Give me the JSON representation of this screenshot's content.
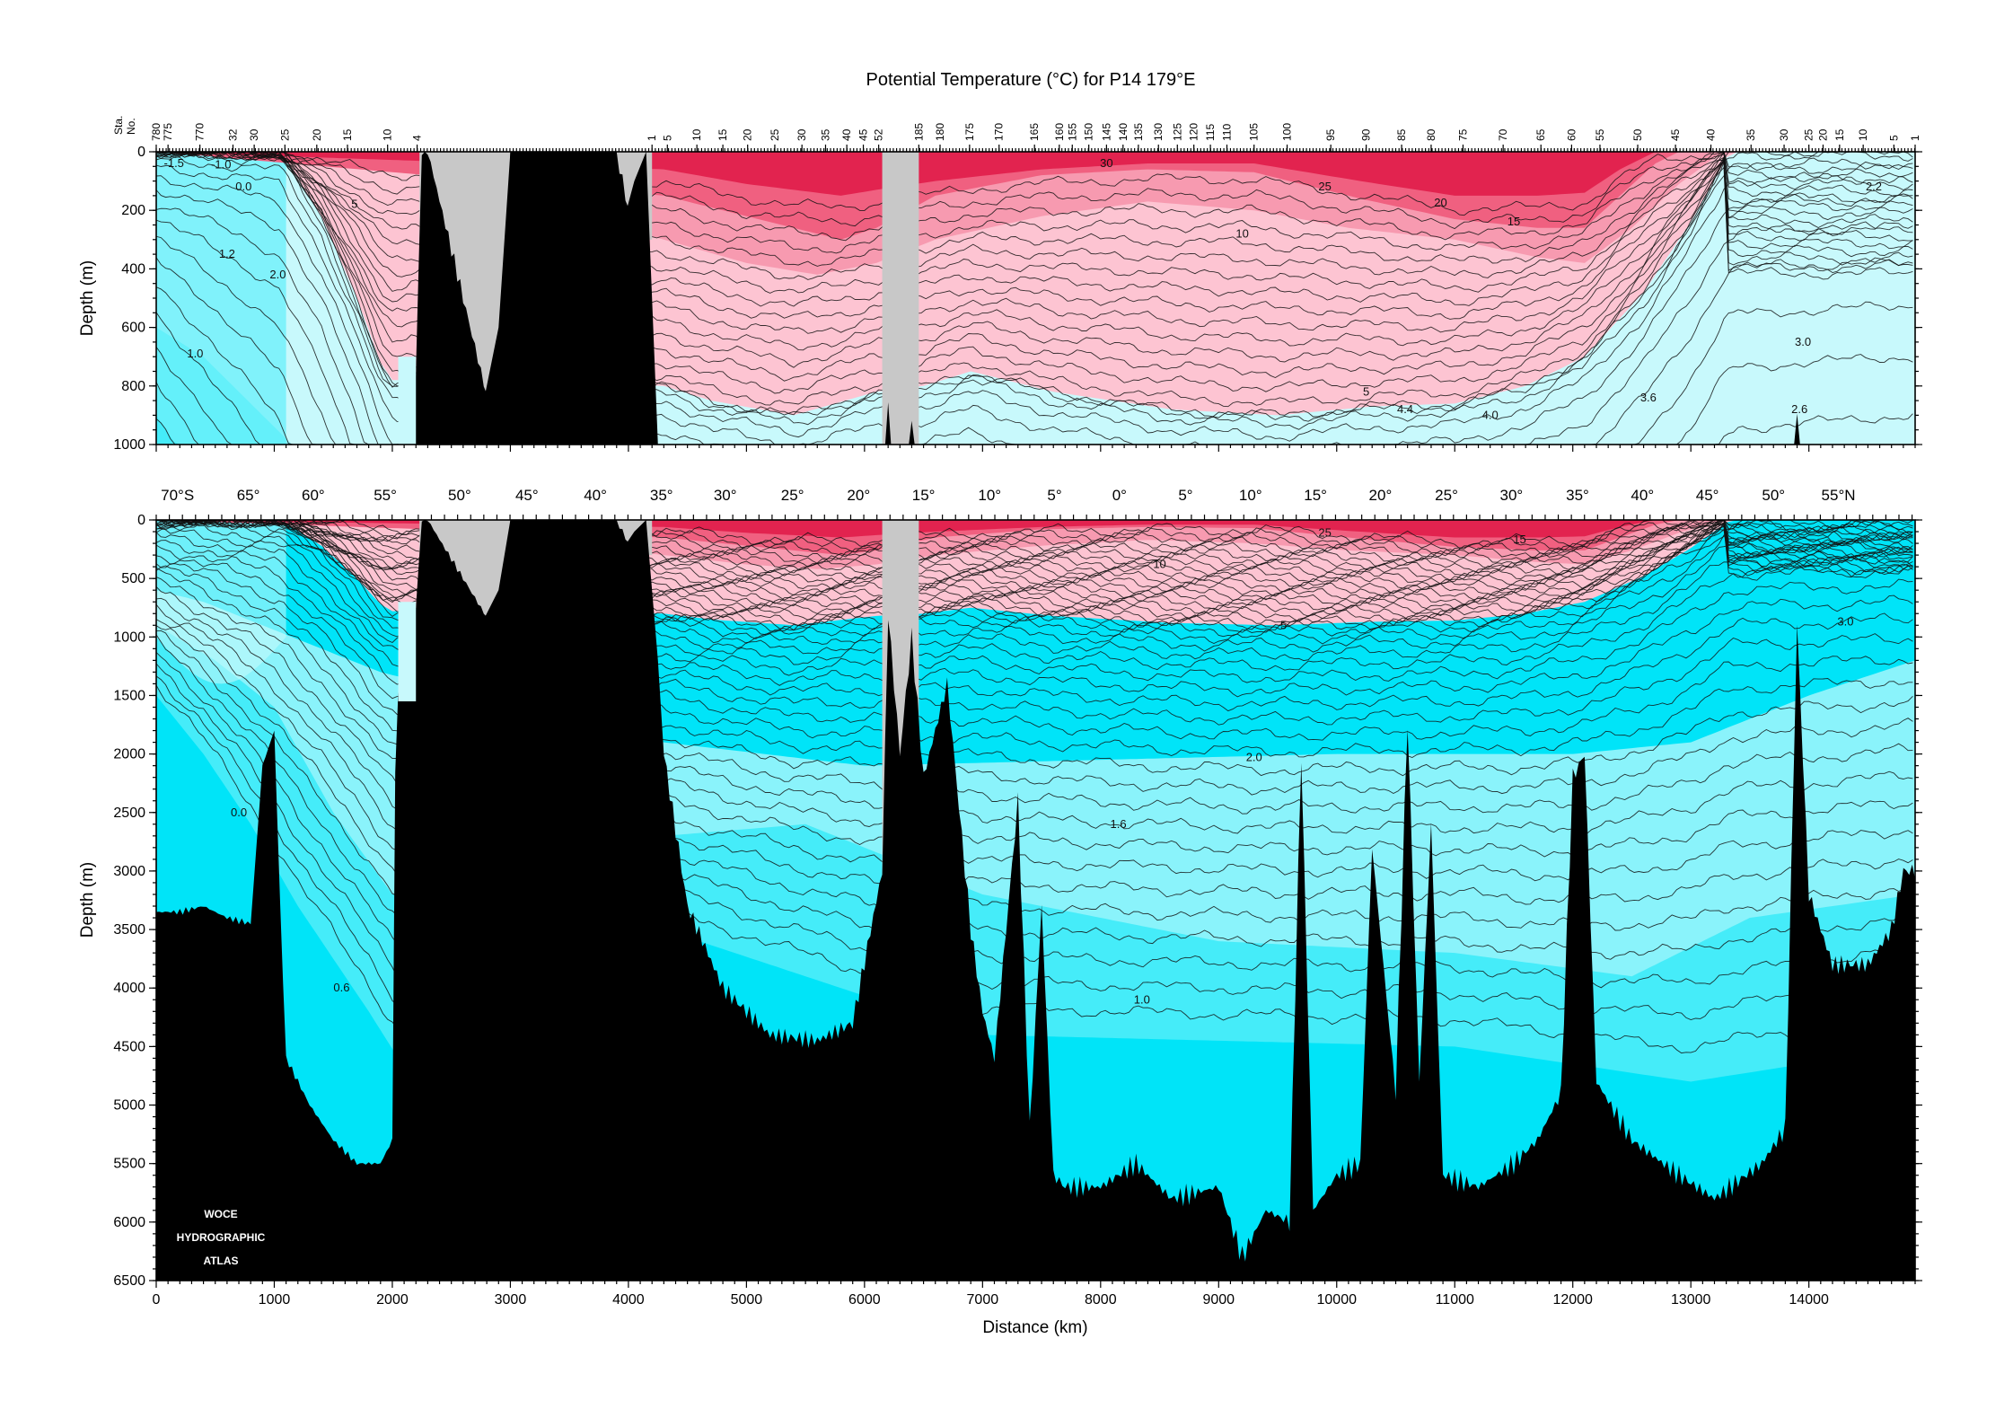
{
  "chart_data": [
    {
      "type": "contour-section",
      "title": "Potential Temperature (°C) for P14 179°E",
      "ylabel": "Depth (m)",
      "station_label": [
        "Sta.",
        "No."
      ],
      "xlim": [
        0,
        14900
      ],
      "ylim": [
        1000,
        0
      ],
      "yticks": [
        "0",
        "200",
        "400",
        "600",
        "800",
        "1000"
      ],
      "station_numbers": [
        {
          "sta": "780",
          "km": 0
        },
        {
          "sta": "775",
          "km": 100
        },
        {
          "sta": "770",
          "km": 370
        },
        {
          "sta": "32",
          "km": 650
        },
        {
          "sta": "30",
          "km": 830
        },
        {
          "sta": "25",
          "km": 1090
        },
        {
          "sta": "20",
          "km": 1360
        },
        {
          "sta": "15",
          "km": 1620
        },
        {
          "sta": "10",
          "km": 1960
        },
        {
          "sta": "4",
          "km": 2210
        },
        {
          "sta": "1",
          "km": 4200
        },
        {
          "sta": "5",
          "km": 4330
        },
        {
          "sta": "10",
          "km": 4580
        },
        {
          "sta": "15",
          "km": 4800
        },
        {
          "sta": "20",
          "km": 5010
        },
        {
          "sta": "25",
          "km": 5240
        },
        {
          "sta": "30",
          "km": 5470
        },
        {
          "sta": "35",
          "km": 5670
        },
        {
          "sta": "40",
          "km": 5850
        },
        {
          "sta": "45",
          "km": 5990
        },
        {
          "sta": "52",
          "km": 6120
        },
        {
          "sta": "185",
          "km": 6460
        },
        {
          "sta": "180",
          "km": 6640
        },
        {
          "sta": "175",
          "km": 6890
        },
        {
          "sta": "170",
          "km": 7140
        },
        {
          "sta": "165",
          "km": 7440
        },
        {
          "sta": "160",
          "km": 7650
        },
        {
          "sta": "155",
          "km": 7760
        },
        {
          "sta": "150",
          "km": 7900
        },
        {
          "sta": "145",
          "km": 8050
        },
        {
          "sta": "140",
          "km": 8190
        },
        {
          "sta": "135",
          "km": 8320
        },
        {
          "sta": "130",
          "km": 8490
        },
        {
          "sta": "125",
          "km": 8650
        },
        {
          "sta": "120",
          "km": 8790
        },
        {
          "sta": "115",
          "km": 8930
        },
        {
          "sta": "110",
          "km": 9070
        },
        {
          "sta": "105",
          "km": 9300
        },
        {
          "sta": "100",
          "km": 9580
        },
        {
          "sta": "95",
          "km": 9950
        },
        {
          "sta": "90",
          "km": 10250
        },
        {
          "sta": "85",
          "km": 10550
        },
        {
          "sta": "80",
          "km": 10800
        },
        {
          "sta": "75",
          "km": 11070
        },
        {
          "sta": "70",
          "km": 11410
        },
        {
          "sta": "65",
          "km": 11730
        },
        {
          "sta": "60",
          "km": 11990
        },
        {
          "sta": "55",
          "km": 12230
        },
        {
          "sta": "50",
          "km": 12550
        },
        {
          "sta": "45",
          "km": 12870
        },
        {
          "sta": "40",
          "km": 13170
        },
        {
          "sta": "35",
          "km": 13510
        },
        {
          "sta": "30",
          "km": 13790
        },
        {
          "sta": "25",
          "km": 14000
        },
        {
          "sta": "20",
          "km": 14120
        },
        {
          "sta": "15",
          "km": 14260
        },
        {
          "sta": "10",
          "km": 14460
        },
        {
          "sta": "5",
          "km": 14720
        },
        {
          "sta": "1",
          "km": 14900
        }
      ],
      "contour_labels": [
        {
          "text": "-1.5",
          "km": 150,
          "depth": 40
        },
        {
          "text": "-1.0",
          "km": 550,
          "depth": 45
        },
        {
          "text": "0.0",
          "km": 740,
          "depth": 120
        },
        {
          "text": "1.2",
          "km": 600,
          "depth": 350
        },
        {
          "text": "2.0",
          "km": 1030,
          "depth": 420
        },
        {
          "text": "1.0",
          "km": 330,
          "depth": 690
        },
        {
          "text": "5",
          "km": 1680,
          "depth": 180
        },
        {
          "text": "30",
          "km": 8050,
          "depth": 40
        },
        {
          "text": "25",
          "km": 9900,
          "depth": 120
        },
        {
          "text": "20",
          "km": 10880,
          "depth": 175
        },
        {
          "text": "15",
          "km": 11500,
          "depth": 240
        },
        {
          "text": "10",
          "km": 9200,
          "depth": 280
        },
        {
          "text": "5",
          "km": 10250,
          "depth": 820
        },
        {
          "text": "4.4",
          "km": 10580,
          "depth": 880
        },
        {
          "text": "4.0",
          "km": 11300,
          "depth": 900
        },
        {
          "text": "3.6",
          "km": 12640,
          "depth": 840
        },
        {
          "text": "3.0",
          "km": 13950,
          "depth": 650
        },
        {
          "text": "2.6",
          "km": 13920,
          "depth": 880
        },
        {
          "text": "2.2",
          "km": 14550,
          "depth": 120
        }
      ]
    },
    {
      "type": "contour-section",
      "ylabel": "Depth (m)",
      "xlabel": "Distance (km)",
      "xlim": [
        0,
        14900
      ],
      "ylim": [
        6500,
        0
      ],
      "xticks": [
        "0",
        "1000",
        "2000",
        "3000",
        "4000",
        "5000",
        "6000",
        "7000",
        "8000",
        "9000",
        "10000",
        "11000",
        "12000",
        "13000",
        "14000"
      ],
      "yticks": [
        "0",
        "500",
        "1000",
        "1500",
        "2000",
        "2500",
        "3000",
        "3500",
        "4000",
        "4500",
        "5000",
        "5500",
        "6000",
        "6500"
      ],
      "latitude_labels": [
        {
          "text": "70°S",
          "km": 180
        },
        {
          "text": "65°",
          "km": 780
        },
        {
          "text": "60°",
          "km": 1330
        },
        {
          "text": "55°",
          "km": 1940
        },
        {
          "text": "50°",
          "km": 2570
        },
        {
          "text": "45°",
          "km": 3140
        },
        {
          "text": "40°",
          "km": 3720
        },
        {
          "text": "35°",
          "km": 4280
        },
        {
          "text": "30°",
          "km": 4820
        },
        {
          "text": "25°",
          "km": 5390
        },
        {
          "text": "20°",
          "km": 5950
        },
        {
          "text": "15°",
          "km": 6500
        },
        {
          "text": "10°",
          "km": 7060
        },
        {
          "text": "5°",
          "km": 7610
        },
        {
          "text": "0°",
          "km": 8160
        },
        {
          "text": "5°",
          "km": 8720
        },
        {
          "text": "10°",
          "km": 9270
        },
        {
          "text": "15°",
          "km": 9820
        },
        {
          "text": "20°",
          "km": 10370
        },
        {
          "text": "25°",
          "km": 10930
        },
        {
          "text": "30°",
          "km": 11480
        },
        {
          "text": "35°",
          "km": 12040
        },
        {
          "text": "40°",
          "km": 12590
        },
        {
          "text": "45°",
          "km": 13140
        },
        {
          "text": "50°",
          "km": 13700
        },
        {
          "text": "55°N",
          "km": 14250
        }
      ],
      "contour_labels": [
        {
          "text": "25",
          "km": 9900,
          "depth": 110
        },
        {
          "text": "15",
          "km": 11550,
          "depth": 170
        },
        {
          "text": "10",
          "km": 8500,
          "depth": 380
        },
        {
          "text": "5",
          "km": 9550,
          "depth": 900
        },
        {
          "text": "3.0",
          "km": 14310,
          "depth": 870
        },
        {
          "text": "2.0",
          "km": 9300,
          "depth": 2030
        },
        {
          "text": "1.6",
          "km": 8150,
          "depth": 2600
        },
        {
          "text": "0.0",
          "km": 700,
          "depth": 2500
        },
        {
          "text": "0.6",
          "km": 1570,
          "depth": 4000
        },
        {
          "text": "1.0",
          "km": 8350,
          "depth": 4100
        }
      ],
      "watermark": [
        "WOCE",
        "HYDROGRAPHIC",
        "ATLAS"
      ]
    }
  ],
  "colors": {
    "warm_deep": "#e2234f",
    "warm_mid": "#f06080",
    "warm_light": "#f79ab0",
    "warm_pale": "#fdc4d2",
    "cold_pale": "#c8f9fc",
    "cold_light": "#8af3fb",
    "cold_mid": "#45ecf9",
    "cold_deep": "#00e4f8",
    "no_data": "#c8c8c8",
    "bottom": "#000000"
  }
}
